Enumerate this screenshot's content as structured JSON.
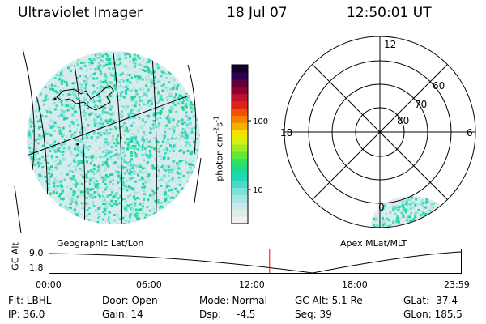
{
  "header": {
    "instrument": "Ultraviolet Imager",
    "date": "18 Jul 07",
    "time": "12:50:01 UT"
  },
  "colorbar": {
    "unit_label_main": "photon cm",
    "unit_exp1": "-2",
    "unit_s": "s",
    "unit_exp2": "-1",
    "ticks": [
      "100",
      "10"
    ],
    "colors": [
      "#f0f0f0",
      "#dcecec",
      "#c8eaea",
      "#a8e4e0",
      "#7ee0d8",
      "#48dcc8",
      "#20d8b8",
      "#20d890",
      "#30e060",
      "#60e840",
      "#a0ee20",
      "#d8f010",
      "#f8e000",
      "#f8b000",
      "#f88000",
      "#f05000",
      "#e02020",
      "#c01030",
      "#900030",
      "#600040",
      "#300050",
      "#100030"
    ]
  },
  "left_panel": {
    "label": "Geographic Lat/Lon"
  },
  "right_panel": {
    "label": "Apex MLat/MLT",
    "lat_labels": [
      "60",
      "70",
      "80"
    ],
    "mlt_labels": {
      "top": "12",
      "left": "18",
      "right": "6",
      "bottom": "0"
    }
  },
  "timeline": {
    "ylabel": "GC Alt",
    "yticks": [
      "9.0",
      "1.8"
    ],
    "xticks": [
      "00:00",
      "06:00",
      "12:00",
      "18:00",
      "23:59"
    ],
    "current_time_fraction": 0.535,
    "marker_color": "#ff0000"
  },
  "status": {
    "flt": "Flt: LBHL",
    "ip": "IP: 36.0",
    "door": "Door: Open",
    "gain": "Gain: 14",
    "mode": "Mode: Normal",
    "dsp_label": "Dsp:",
    "dsp_value": "-4.5",
    "gc_alt": "GC Alt: 5.1 Re",
    "seq": "Seq: 39",
    "glat": "GLat: -37.4",
    "glon": "GLon: 185.5"
  }
}
